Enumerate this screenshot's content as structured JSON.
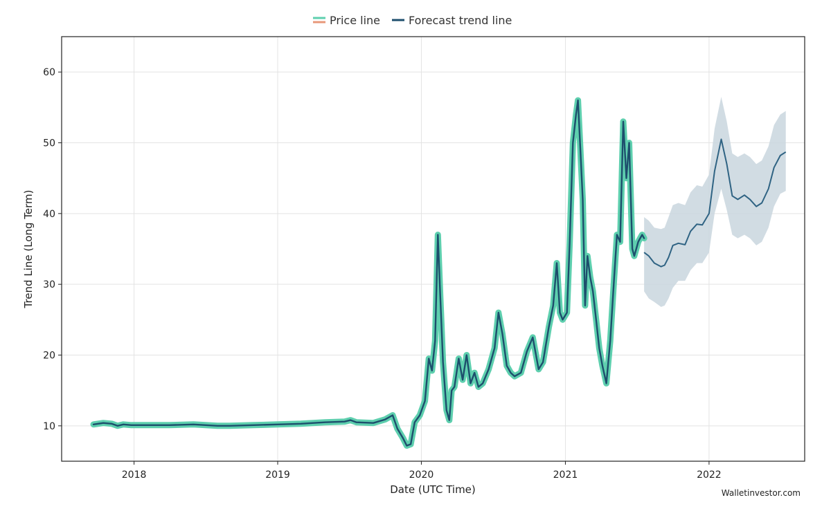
{
  "chart_data": {
    "type": "line",
    "xlabel": "Date (UTC Time)",
    "ylabel": "Trend Line (Long Term)",
    "xlim": [
      "2017-07-01",
      "2022-09-01"
    ],
    "ylim": [
      5,
      65
    ],
    "x_ticks": [
      "2018",
      "2019",
      "2020",
      "2021",
      "2022"
    ],
    "y_ticks": [
      10,
      20,
      30,
      40,
      50,
      60
    ],
    "grid": true,
    "legend_position": "top-center",
    "watermark": "Walletinvestor.com",
    "colors": {
      "price_band": "#5ecfae",
      "price_line": "#1d4e6c",
      "forecast_line": "#2f6383",
      "forecast_band": "#c9d6de",
      "legend_price_upper": "#5ecfae",
      "legend_price_lower": "#e8987a",
      "legend_forecast": "#1d4e6c"
    },
    "series": [
      {
        "name": "Price line",
        "x": [
          "2017-09-20",
          "2017-10-15",
          "2017-11-05",
          "2017-11-20",
          "2017-12-05",
          "2017-12-25",
          "2018-02-01",
          "2018-04-01",
          "2018-06-01",
          "2018-08-01",
          "2018-09-01",
          "2018-11-01",
          "2019-01-01",
          "2019-03-01",
          "2019-05-01",
          "2019-06-20",
          "2019-07-05",
          "2019-07-20",
          "2019-09-01",
          "2019-10-01",
          "2019-10-20",
          "2019-11-01",
          "2019-11-15",
          "2019-11-25",
          "2019-12-05",
          "2019-12-15",
          "2019-12-28",
          "2020-01-10",
          "2020-01-20",
          "2020-01-28",
          "2020-02-05",
          "2020-02-12",
          "2020-02-18",
          "2020-02-25",
          "2020-03-05",
          "2020-03-12",
          "2020-03-18",
          "2020-03-25",
          "2020-04-05",
          "2020-04-15",
          "2020-04-25",
          "2020-05-05",
          "2020-05-15",
          "2020-05-25",
          "2020-06-05",
          "2020-06-20",
          "2020-07-05",
          "2020-07-15",
          "2020-07-25",
          "2020-08-05",
          "2020-08-15",
          "2020-08-25",
          "2020-09-10",
          "2020-09-25",
          "2020-10-10",
          "2020-10-25",
          "2020-11-05",
          "2020-11-20",
          "2020-12-01",
          "2020-12-10",
          "2020-12-18",
          "2020-12-25",
          "2021-01-05",
          "2021-01-12",
          "2021-01-20",
          "2021-01-28",
          "2021-02-02",
          "2021-02-08",
          "2021-02-14",
          "2021-02-20",
          "2021-02-26",
          "2021-03-05",
          "2021-03-12",
          "2021-03-20",
          "2021-03-28",
          "2021-04-05",
          "2021-04-15",
          "2021-04-25",
          "2021-05-05",
          "2021-05-12",
          "2021-05-20",
          "2021-05-28",
          "2021-06-05",
          "2021-06-12",
          "2021-06-20",
          "2021-06-25",
          "2021-06-30",
          "2021-07-05",
          "2021-07-10",
          "2021-07-15",
          "2021-07-20"
        ],
        "values": [
          10.2,
          10.4,
          10.3,
          10.0,
          10.2,
          10.1,
          10.1,
          10.1,
          10.2,
          10.0,
          10.0,
          10.1,
          10.2,
          10.3,
          10.5,
          10.6,
          10.8,
          10.5,
          10.4,
          10.9,
          11.5,
          9.6,
          8.3,
          7.2,
          7.4,
          10.5,
          11.5,
          13.5,
          19.5,
          17.8,
          22.0,
          37.0,
          28.5,
          19.0,
          12.2,
          10.8,
          15.0,
          15.5,
          19.5,
          16.5,
          20.0,
          16.0,
          17.5,
          15.5,
          16.0,
          18.0,
          21.0,
          26.0,
          23.0,
          18.5,
          17.5,
          17.0,
          17.5,
          20.5,
          22.5,
          18.0,
          19.0,
          24.0,
          27.0,
          33.0,
          26.0,
          25.0,
          26.0,
          36.0,
          50.0,
          54.0,
          56.0,
          49.0,
          42.0,
          27.0,
          34.0,
          31.0,
          29.0,
          25.0,
          21.0,
          18.5,
          16.0,
          22.0,
          31.0,
          37.0,
          36.0,
          53.0,
          45.0,
          50.0,
          35.0,
          34.0,
          35.0,
          36.0,
          36.5,
          37.0,
          36.5
        ]
      },
      {
        "name": "Forecast trend line",
        "x": [
          "2021-07-20",
          "2021-08-01",
          "2021-08-15",
          "2021-09-01",
          "2021-09-10",
          "2021-09-20",
          "2021-10-01",
          "2021-10-15",
          "2021-11-01",
          "2021-11-15",
          "2021-12-01",
          "2021-12-15",
          "2022-01-01",
          "2022-01-15",
          "2022-02-01",
          "2022-02-15",
          "2022-03-01",
          "2022-03-15",
          "2022-04-01",
          "2022-04-15",
          "2022-05-01",
          "2022-05-15",
          "2022-06-01",
          "2022-06-15",
          "2022-07-01",
          "2022-07-15"
        ],
        "values": [
          34.5,
          34.0,
          33.0,
          32.5,
          32.7,
          33.8,
          35.5,
          35.8,
          35.6,
          37.5,
          38.5,
          38.4,
          40.0,
          46.0,
          50.5,
          47.0,
          42.5,
          42.0,
          42.6,
          42.0,
          41.0,
          41.5,
          43.5,
          46.5,
          48.2,
          48.7
        ],
        "lower": [
          29.0,
          28.0,
          27.5,
          26.8,
          27.0,
          28.0,
          29.5,
          30.5,
          30.5,
          32.0,
          33.0,
          33.0,
          34.5,
          40.0,
          43.5,
          40.5,
          37.0,
          36.5,
          37.0,
          36.5,
          35.5,
          36.0,
          38.0,
          41.0,
          42.8,
          43.2
        ],
        "upper": [
          39.5,
          39.0,
          38.0,
          37.8,
          38.0,
          39.5,
          41.2,
          41.5,
          41.2,
          43.0,
          44.0,
          43.8,
          45.5,
          52.0,
          56.5,
          53.0,
          48.5,
          48.0,
          48.5,
          48.0,
          47.0,
          47.5,
          49.5,
          52.5,
          54.0,
          54.5
        ]
      }
    ]
  }
}
